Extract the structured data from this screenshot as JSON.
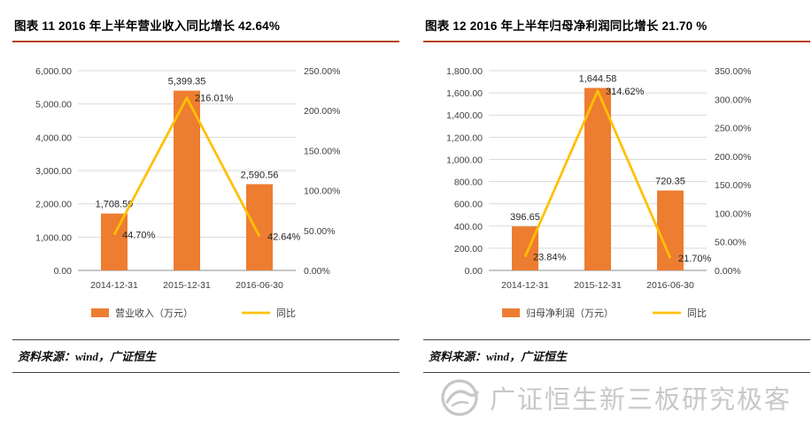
{
  "page": {
    "background": "#ffffff"
  },
  "watermark": {
    "text": "广证恒生新三板研究极客",
    "color": "#c8c8c8",
    "logo_icon": "gzhs-circle-swoosh-logo"
  },
  "chart_data": [
    {
      "type": "bar+line",
      "title": "图表 11 2016 年上半年营业收入同比增长 42.64%",
      "source": "资料来源：wind，广证恒生",
      "categories": [
        "2014-12-31",
        "2015-12-31",
        "2016-06-30"
      ],
      "bar_series": {
        "name": "营业收入（万元）",
        "color": "#ED7D31",
        "values": [
          1708.59,
          5399.35,
          2590.56
        ],
        "labels": [
          "1,708.59",
          "5,399.35",
          "2,590.56"
        ]
      },
      "line_series": {
        "name": "同比",
        "color": "#FFC000",
        "values": [
          44.7,
          216.01,
          42.64
        ],
        "labels": [
          "44.70%",
          "216.01%",
          "42.64%"
        ]
      },
      "left_axis": {
        "min": 0,
        "max": 6000,
        "step": 1000,
        "ticks": [
          "0.00",
          "1,000.00",
          "2,000.00",
          "3,000.00",
          "4,000.00",
          "5,000.00",
          "6,000.00"
        ]
      },
      "right_axis": {
        "min": 0,
        "max": 250,
        "step": 50,
        "ticks": [
          "0.00%",
          "50.00%",
          "100.00%",
          "150.00%",
          "200.00%",
          "250.00%"
        ]
      },
      "legend_position": "bottom",
      "grid": true
    },
    {
      "type": "bar+line",
      "title": "图表 12 2016 年上半年归母净利润同比增长 21.70 %",
      "source": "资料来源：wind，广证恒生",
      "categories": [
        "2014-12-31",
        "2015-12-31",
        "2016-06-30"
      ],
      "bar_series": {
        "name": "归母净利润（万元）",
        "color": "#ED7D31",
        "values": [
          396.65,
          1644.58,
          720.35
        ],
        "labels": [
          "396.65",
          "1,644.58",
          "720.35"
        ]
      },
      "line_series": {
        "name": "同比",
        "color": "#FFC000",
        "values": [
          23.84,
          314.62,
          21.7
        ],
        "labels": [
          "23.84%",
          "314.62%",
          "21.70%"
        ]
      },
      "left_axis": {
        "min": 0,
        "max": 1800,
        "step": 200,
        "ticks": [
          "0.00",
          "200.00",
          "400.00",
          "600.00",
          "800.00",
          "1,000.00",
          "1,200.00",
          "1,400.00",
          "1,600.00",
          "1,800.00"
        ]
      },
      "right_axis": {
        "min": 0,
        "max": 350,
        "step": 50,
        "ticks": [
          "0.00%",
          "50.00%",
          "100.00%",
          "150.00%",
          "200.00%",
          "250.00%",
          "300.00%",
          "350.00%"
        ]
      },
      "legend_position": "bottom",
      "grid": true
    }
  ]
}
